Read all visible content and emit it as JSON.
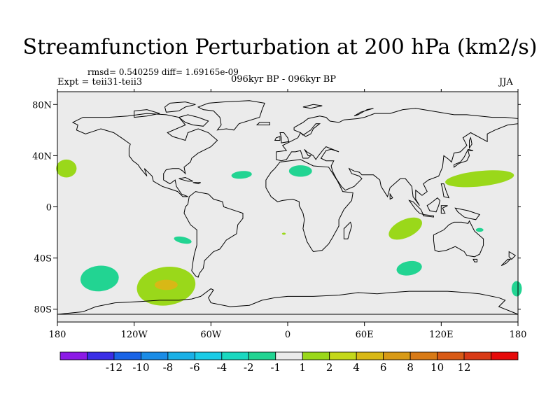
{
  "title": "Streamfunction Perturbation at 200 hPa (km2/s)",
  "stats_line": "rmsd= 0.540259 diff= 1.69165e-09",
  "experiment_line": "Expt = teii31-teii3",
  "period_line": "096kyr BP - 096kyr BP",
  "season": "JJA",
  "map": {
    "lon_range": [
      -180,
      180
    ],
    "lat_range": [
      -90,
      90
    ],
    "lat_ticks": [
      {
        "lat": 80,
        "label": "80N"
      },
      {
        "lat": 40,
        "label": "40N"
      },
      {
        "lat": 0,
        "label": "0"
      },
      {
        "lat": -40,
        "label": "40S"
      },
      {
        "lat": -80,
        "label": "80S"
      }
    ],
    "lon_ticks": [
      {
        "lon": -180,
        "label": "180"
      },
      {
        "lon": -120,
        "label": "120W"
      },
      {
        "lon": -60,
        "label": "60W"
      },
      {
        "lon": 0,
        "label": "0"
      },
      {
        "lon": 60,
        "label": "60E"
      },
      {
        "lon": 120,
        "label": "120E"
      },
      {
        "lon": 180,
        "label": "180"
      }
    ],
    "background_color": "#ebebeb",
    "anomalies": [
      {
        "lon": -173,
        "lat": 30,
        "rlon": 8,
        "rlat": 7,
        "color": "#9ad81a",
        "rot": 0
      },
      {
        "lon": -147,
        "lat": -56,
        "rlon": 15,
        "rlat": 10,
        "color": "#22d492",
        "rot": -5
      },
      {
        "lon": -95,
        "lat": -62,
        "rlon": 23,
        "rlat": 15,
        "color": "#9ad81a",
        "rot": -8
      },
      {
        "lon": -95,
        "lat": -61,
        "rlon": 9,
        "rlat": 4,
        "color": "#d8b816",
        "rot": 0
      },
      {
        "lon": -82,
        "lat": -26,
        "rlon": 7,
        "rlat": 2.5,
        "color": "#22d492",
        "rot": 12
      },
      {
        "lon": -36,
        "lat": 25,
        "rlon": 8,
        "rlat": 3,
        "color": "#22d492",
        "rot": -5
      },
      {
        "lon": 10,
        "lat": 28,
        "rlon": 9,
        "rlat": 4.5,
        "color": "#22d492",
        "rot": 0
      },
      {
        "lon": -3,
        "lat": -21,
        "rlon": 1.5,
        "rlat": 0.8,
        "color": "#9ad81a",
        "rot": 0
      },
      {
        "lon": 92,
        "lat": -17,
        "rlon": 14,
        "rlat": 7,
        "color": "#9ad81a",
        "rot": -25
      },
      {
        "lon": 95,
        "lat": -48,
        "rlon": 10,
        "rlat": 5.5,
        "color": "#22d492",
        "rot": -10
      },
      {
        "lon": 150,
        "lat": 22,
        "rlon": 27,
        "rlat": 6,
        "color": "#9ad81a",
        "rot": -6
      },
      {
        "lon": 179,
        "lat": -64,
        "rlon": 4,
        "rlat": 6,
        "color": "#22d492",
        "rot": 0
      },
      {
        "lon": 150,
        "lat": -18,
        "rlon": 3,
        "rlat": 1.5,
        "color": "#22d492",
        "rot": 0
      }
    ]
  },
  "colorbar": {
    "colors": [
      "#8c1ae6",
      "#3a2ee6",
      "#1a64e6",
      "#1a8ce6",
      "#1ab0e6",
      "#1acbe6",
      "#1ad8c0",
      "#22d492",
      "#ebebeb",
      "#9ad81a",
      "#c4d81a",
      "#d8b816",
      "#d89a16",
      "#d87a16",
      "#d85a16",
      "#d83a16",
      "#e60a0a"
    ],
    "labels": [
      "-12",
      "-10",
      "-8",
      "-6",
      "-4",
      "-2",
      "-1",
      "1",
      "2",
      "4",
      "6",
      "8",
      "10",
      "12"
    ]
  }
}
